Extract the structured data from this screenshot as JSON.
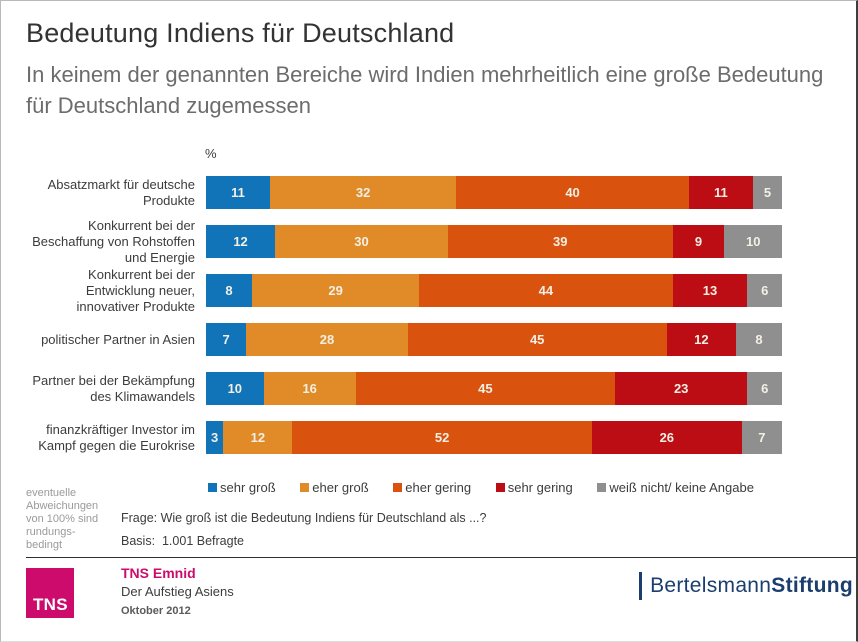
{
  "header": {
    "title": "Bedeutung Indiens für Deutschland",
    "subtitle": "In keinem der genannten Bereiche wird Indien mehrheitlich eine große Bedeutung für Deutschland zugemessen"
  },
  "chart_data": {
    "type": "bar",
    "orientation": "horizontal",
    "stacked": true,
    "normalized_to_100_percent": true,
    "unit_label": "%",
    "xlim": [
      0,
      100
    ],
    "legend_position": "bottom",
    "value_labels": "inside-segments",
    "categories": [
      "Absatzmarkt für deutsche Produkte",
      "Konkurrent bei der Beschaffung von Rohstoffen und Energie",
      "Konkurrent bei der Entwicklung neuer, innovativer Produkte",
      "politischer Partner in Asien",
      "Partner bei der Bekämpfung des Klimawandels",
      "finanzkräftiger Investor im Kampf gegen die Eurokrise"
    ],
    "series": [
      {
        "name": "sehr groß",
        "color": "#1173b8",
        "values": [
          11,
          12,
          8,
          7,
          10,
          3
        ]
      },
      {
        "name": "eher groß",
        "color": "#e08b28",
        "values": [
          32,
          30,
          29,
          28,
          16,
          12
        ]
      },
      {
        "name": "eher gering",
        "color": "#d9530e",
        "values": [
          40,
          39,
          44,
          45,
          45,
          52
        ]
      },
      {
        "name": "sehr gering",
        "color": "#bd0d14",
        "values": [
          11,
          9,
          13,
          12,
          23,
          26
        ]
      },
      {
        "name": "weiß nicht/ keine Angabe",
        "color": "#8f8f8f",
        "values": [
          5,
          10,
          6,
          8,
          6,
          7
        ]
      }
    ]
  },
  "notes": {
    "rounding": "eventuelle Abweichungen von 100% sind rundungs-bedingt",
    "question": "Frage: Wie groß ist die Bedeutung Indiens für Deutschland als ...?",
    "basis": "Basis:  1.001 Befragte"
  },
  "footer": {
    "tns_logo_text": "TNS",
    "tns_color": "#cc0b6d",
    "source_bold": "TNS Emnid",
    "source_line2": "Der Aufstieg Asiens",
    "source_date": "Oktober 2012",
    "brand_regular": "Bertelsmann",
    "brand_bold": "Stiftung",
    "brand_color": "#1b3e6f"
  }
}
